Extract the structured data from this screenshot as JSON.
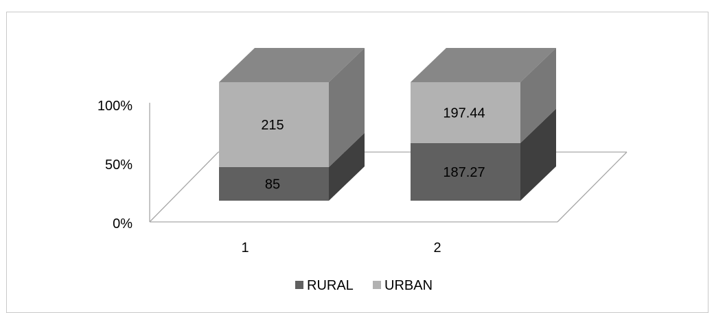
{
  "chart_data": {
    "type": "bar",
    "stacked": "percent",
    "style": "3d",
    "categories": [
      "1",
      "2"
    ],
    "series": [
      {
        "name": "RURAL",
        "values": [
          85,
          187.27
        ],
        "labels": [
          "85",
          "187.27"
        ],
        "color": "#606060"
      },
      {
        "name": "URBAN",
        "values": [
          215,
          197.44
        ],
        "labels": [
          "215",
          "197.44"
        ],
        "color": "#b2b2b2"
      }
    ],
    "y_ticks": [
      "0%",
      "50%",
      "100%"
    ],
    "ylim": [
      0,
      100
    ],
    "grid": false,
    "legend_position": "bottom",
    "colors": {
      "rural_side": "#3f3f3f",
      "urban_side": "#787878",
      "urban_top": "#878787",
      "axis": "#a6a6a6",
      "frame": "#c8c8c8"
    }
  }
}
